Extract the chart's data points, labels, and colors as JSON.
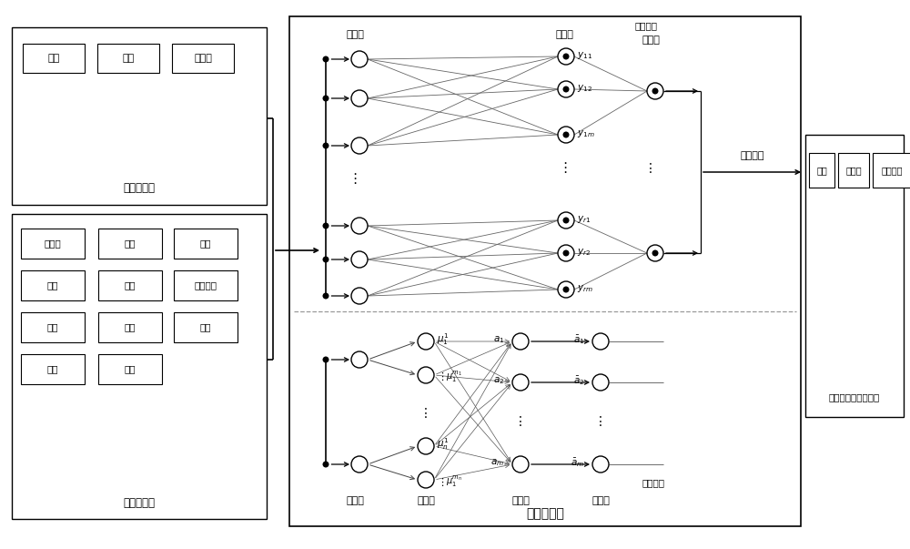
{
  "fig_width": 10.0,
  "fig_height": 6.03,
  "bg_color": "#ffffff",
  "traffic_items": [
    "车速",
    "流量",
    "占有率"
  ],
  "weather_items": [
    [
      "能见度",
      "气温",
      "地温"
    ],
    [
      "气压",
      "湿度",
      "风向风速"
    ],
    [
      "冰冻",
      "雨量",
      "积雪"
    ],
    [
      "冰雹",
      "沙尘",
      ""
    ]
  ],
  "label_traffic": "交通流检测",
  "label_weather": "微气象检测",
  "label_controller": "交通控制器",
  "label_posterior": "后件网络",
  "label_prior": "前件网络",
  "label_wireless": "无线通信",
  "label_board": "可变信息板信息发布",
  "board_items": [
    "限速",
    "车间距",
    "控制方式"
  ],
  "layer1": "第一层",
  "layer2": "第二层",
  "layer3": "第三层",
  "layer4": "第四层"
}
